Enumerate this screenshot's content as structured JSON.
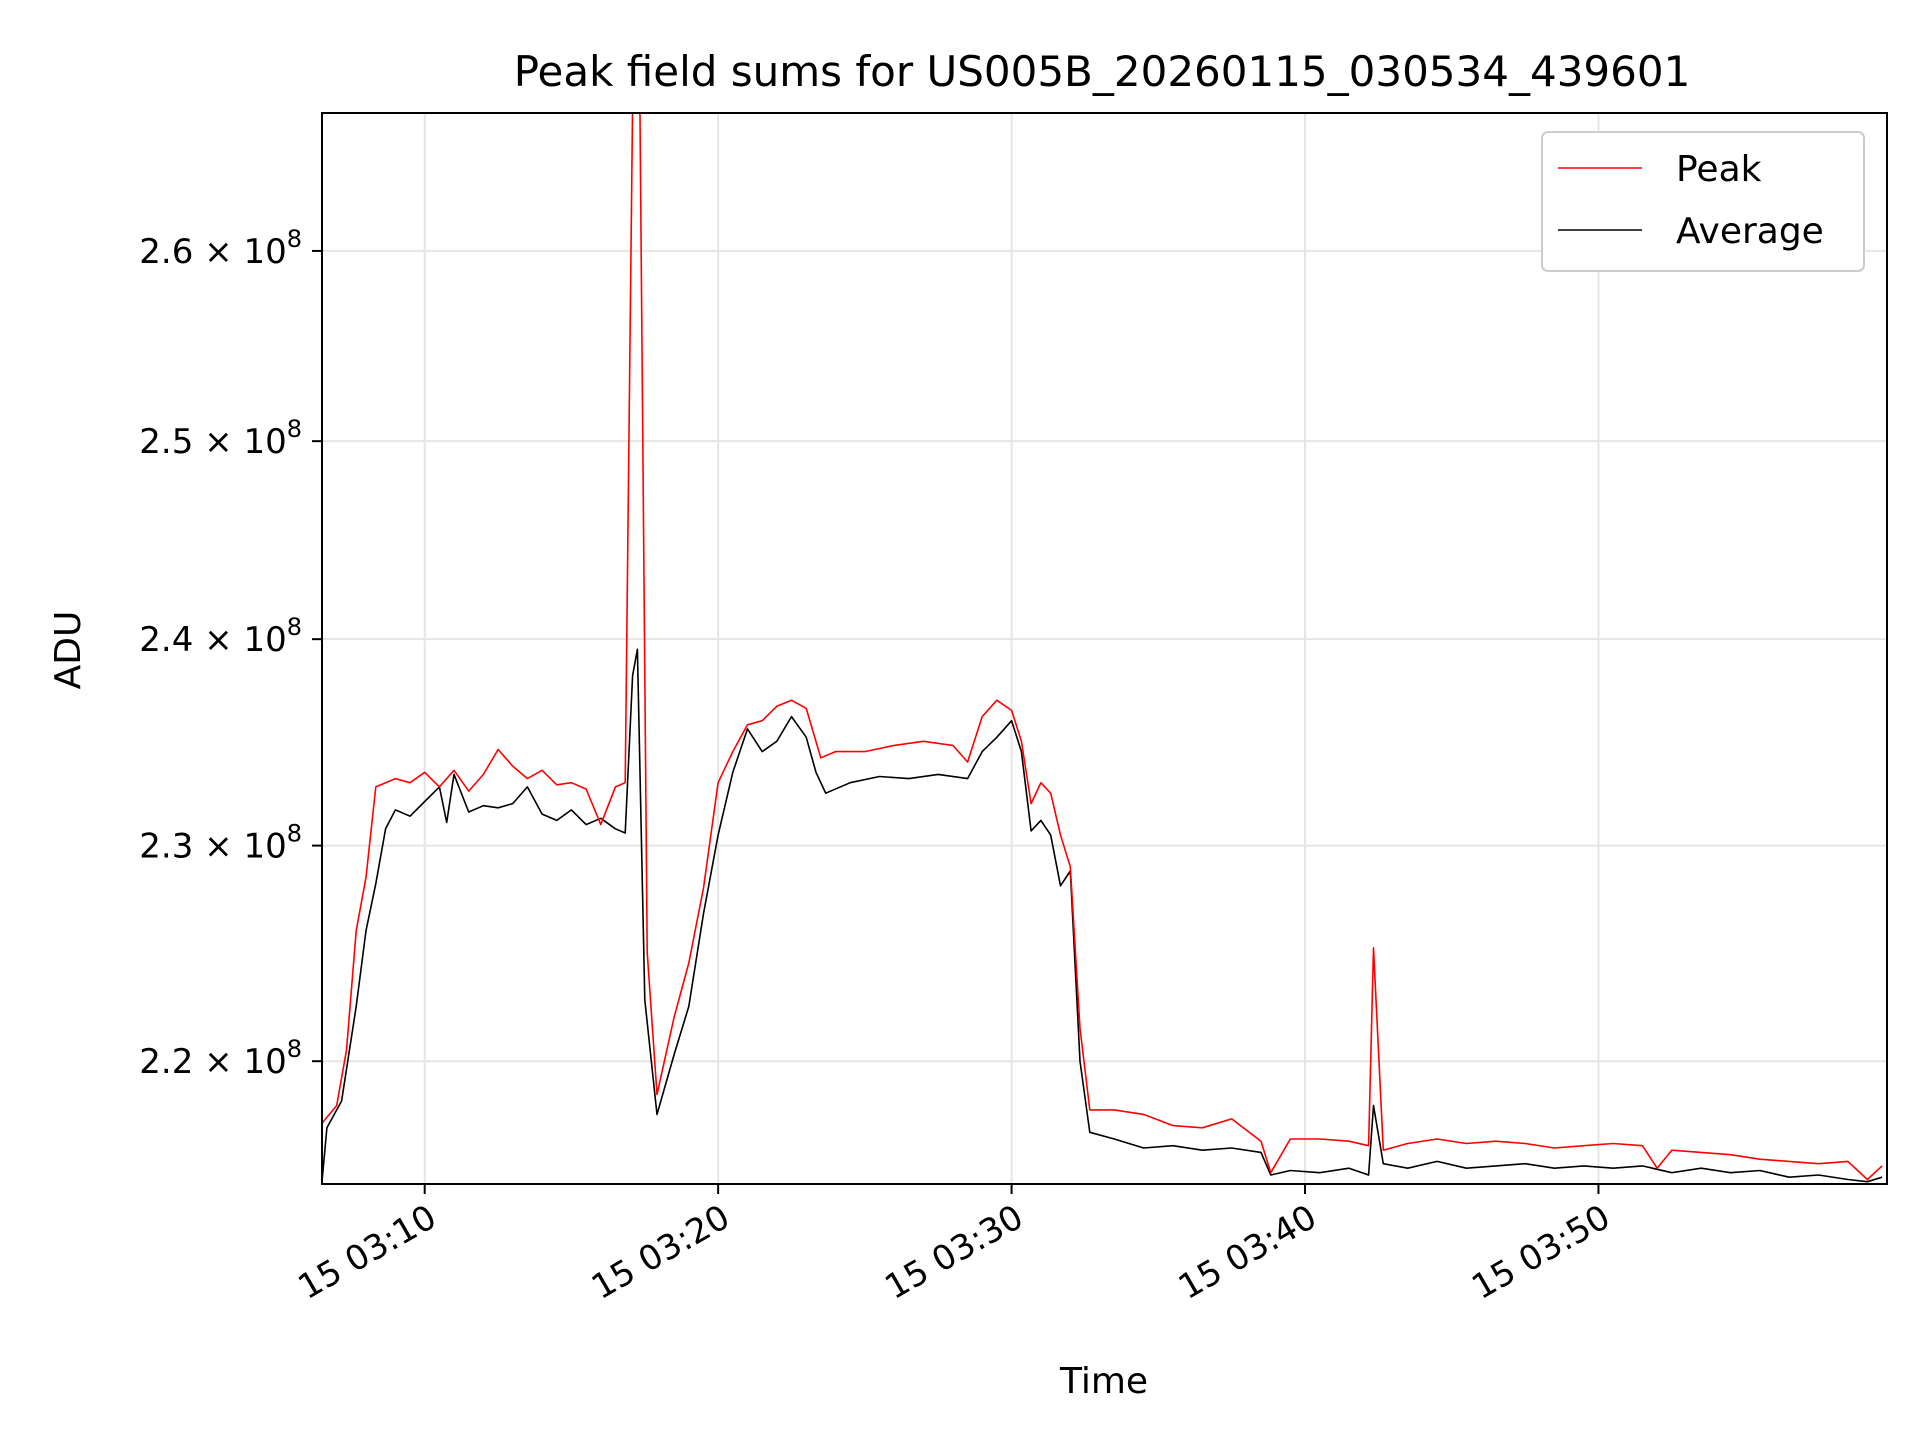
{
  "chart_data": {
    "type": "line",
    "title": "Peak field sums for US005B_20260115_030534_439601",
    "xlabel": "Time",
    "ylabel": "ADU",
    "x_type": "time",
    "x_range": [
      "2026-01-15 03:06:30",
      "2026-01-15 03:59:50"
    ],
    "x_tick_values": [
      "2026-01-15 03:10:00",
      "2026-01-15 03:20:00",
      "2026-01-15 03:30:00",
      "2026-01-15 03:40:00",
      "2026-01-15 03:50:00"
    ],
    "x_tick_labels": [
      "15 03:10",
      "15 03:20",
      "15 03:30",
      "15 03:40",
      "15 03:50"
    ],
    "y_scale": "log",
    "ylim": [
      214500000,
      267500000
    ],
    "y_ticks": [
      {
        "value": 220000000,
        "mantissa": "2.2",
        "exp": "8"
      },
      {
        "value": 230000000,
        "mantissa": "2.3",
        "exp": "8"
      },
      {
        "value": 240000000,
        "mantissa": "2.4",
        "exp": "8"
      },
      {
        "value": 250000000,
        "mantissa": "2.5",
        "exp": "8"
      },
      {
        "value": 260000000,
        "mantissa": "2.6",
        "exp": "8"
      }
    ],
    "grid": true,
    "legend_position": "top-right",
    "series": [
      {
        "name": "Peak",
        "color": "#ff0000",
        "points": [
          [
            "2026-01-15 03:06:30",
            217200000
          ],
          [
            "2026-01-15 03:07:00",
            218000000
          ],
          [
            "2026-01-15 03:07:20",
            220500000
          ],
          [
            "2026-01-15 03:07:40",
            226000000
          ],
          [
            "2026-01-15 03:08:00",
            228500000
          ],
          [
            "2026-01-15 03:08:20",
            232800000
          ],
          [
            "2026-01-15 03:09:00",
            233200000
          ],
          [
            "2026-01-15 03:09:30",
            233000000
          ],
          [
            "2026-01-15 03:10:00",
            233500000
          ],
          [
            "2026-01-15 03:10:30",
            232800000
          ],
          [
            "2026-01-15 03:11:00",
            233600000
          ],
          [
            "2026-01-15 03:11:30",
            232600000
          ],
          [
            "2026-01-15 03:12:00",
            233400000
          ],
          [
            "2026-01-15 03:12:30",
            234600000
          ],
          [
            "2026-01-15 03:13:00",
            233800000
          ],
          [
            "2026-01-15 03:13:30",
            233200000
          ],
          [
            "2026-01-15 03:14:00",
            233600000
          ],
          [
            "2026-01-15 03:14:30",
            232900000
          ],
          [
            "2026-01-15 03:15:00",
            233000000
          ],
          [
            "2026-01-15 03:15:30",
            232700000
          ],
          [
            "2026-01-15 03:16:00",
            231000000
          ],
          [
            "2026-01-15 03:16:30",
            232800000
          ],
          [
            "2026-01-15 03:16:50",
            233000000
          ],
          [
            "2026-01-15 03:17:05",
            268000000
          ],
          [
            "2026-01-15 03:17:20",
            268000000
          ],
          [
            "2026-01-15 03:17:35",
            225000000
          ],
          [
            "2026-01-15 03:17:55",
            218500000
          ],
          [
            "2026-01-15 03:18:30",
            222000000
          ],
          [
            "2026-01-15 03:19:00",
            224500000
          ],
          [
            "2026-01-15 03:19:30",
            228000000
          ],
          [
            "2026-01-15 03:20:00",
            233000000
          ],
          [
            "2026-01-15 03:20:30",
            234500000
          ],
          [
            "2026-01-15 03:21:00",
            235800000
          ],
          [
            "2026-01-15 03:21:30",
            236000000
          ],
          [
            "2026-01-15 03:22:00",
            236700000
          ],
          [
            "2026-01-15 03:22:30",
            237000000
          ],
          [
            "2026-01-15 03:23:00",
            236600000
          ],
          [
            "2026-01-15 03:23:30",
            234200000
          ],
          [
            "2026-01-15 03:24:00",
            234500000
          ],
          [
            "2026-01-15 03:25:00",
            234500000
          ],
          [
            "2026-01-15 03:26:00",
            234800000
          ],
          [
            "2026-01-15 03:27:00",
            235000000
          ],
          [
            "2026-01-15 03:28:00",
            234800000
          ],
          [
            "2026-01-15 03:28:30",
            234000000
          ],
          [
            "2026-01-15 03:29:00",
            236200000
          ],
          [
            "2026-01-15 03:29:30",
            237000000
          ],
          [
            "2026-01-15 03:30:00",
            236500000
          ],
          [
            "2026-01-15 03:30:20",
            235000000
          ],
          [
            "2026-01-15 03:30:40",
            232000000
          ],
          [
            "2026-01-15 03:31:00",
            233000000
          ],
          [
            "2026-01-15 03:31:20",
            232500000
          ],
          [
            "2026-01-15 03:31:40",
            230500000
          ],
          [
            "2026-01-15 03:32:00",
            229000000
          ],
          [
            "2026-01-15 03:32:20",
            221500000
          ],
          [
            "2026-01-15 03:32:40",
            217800000
          ],
          [
            "2026-01-15 03:33:30",
            217800000
          ],
          [
            "2026-01-15 03:34:30",
            217600000
          ],
          [
            "2026-01-15 03:35:30",
            217100000
          ],
          [
            "2026-01-15 03:36:30",
            217000000
          ],
          [
            "2026-01-15 03:37:30",
            217400000
          ],
          [
            "2026-01-15 03:38:30",
            216400000
          ],
          [
            "2026-01-15 03:38:50",
            215000000
          ],
          [
            "2026-01-15 03:39:30",
            216500000
          ],
          [
            "2026-01-15 03:40:30",
            216500000
          ],
          [
            "2026-01-15 03:41:30",
            216400000
          ],
          [
            "2026-01-15 03:42:10",
            216200000
          ],
          [
            "2026-01-15 03:42:20",
            225200000
          ],
          [
            "2026-01-15 03:42:40",
            216000000
          ],
          [
            "2026-01-15 03:43:30",
            216300000
          ],
          [
            "2026-01-15 03:44:30",
            216500000
          ],
          [
            "2026-01-15 03:45:30",
            216300000
          ],
          [
            "2026-01-15 03:46:30",
            216400000
          ],
          [
            "2026-01-15 03:47:30",
            216300000
          ],
          [
            "2026-01-15 03:48:30",
            216100000
          ],
          [
            "2026-01-15 03:49:30",
            216200000
          ],
          [
            "2026-01-15 03:50:30",
            216300000
          ],
          [
            "2026-01-15 03:51:30",
            216200000
          ],
          [
            "2026-01-15 03:52:00",
            215200000
          ],
          [
            "2026-01-15 03:52:30",
            216000000
          ],
          [
            "2026-01-15 03:53:30",
            215900000
          ],
          [
            "2026-01-15 03:54:30",
            215800000
          ],
          [
            "2026-01-15 03:55:30",
            215600000
          ],
          [
            "2026-01-15 03:56:30",
            215500000
          ],
          [
            "2026-01-15 03:57:30",
            215400000
          ],
          [
            "2026-01-15 03:58:30",
            215500000
          ],
          [
            "2026-01-15 03:59:10",
            214700000
          ],
          [
            "2026-01-15 03:59:40",
            215300000
          ]
        ]
      },
      {
        "name": "Average",
        "color": "#000000",
        "points": [
          [
            "2026-01-15 03:06:30",
            214600000
          ],
          [
            "2026-01-15 03:06:40",
            217000000
          ],
          [
            "2026-01-15 03:07:10",
            218200000
          ],
          [
            "2026-01-15 03:07:40",
            222500000
          ],
          [
            "2026-01-15 03:08:00",
            226000000
          ],
          [
            "2026-01-15 03:08:20",
            228200000
          ],
          [
            "2026-01-15 03:08:40",
            230800000
          ],
          [
            "2026-01-15 03:09:00",
            231700000
          ],
          [
            "2026-01-15 03:09:30",
            231400000
          ],
          [
            "2026-01-15 03:10:00",
            232100000
          ],
          [
            "2026-01-15 03:10:30",
            232800000
          ],
          [
            "2026-01-15 03:10:45",
            231100000
          ],
          [
            "2026-01-15 03:11:00",
            233400000
          ],
          [
            "2026-01-15 03:11:30",
            231600000
          ],
          [
            "2026-01-15 03:12:00",
            231900000
          ],
          [
            "2026-01-15 03:12:30",
            231800000
          ],
          [
            "2026-01-15 03:13:00",
            232000000
          ],
          [
            "2026-01-15 03:13:30",
            232800000
          ],
          [
            "2026-01-15 03:14:00",
            231500000
          ],
          [
            "2026-01-15 03:14:30",
            231200000
          ],
          [
            "2026-01-15 03:15:00",
            231700000
          ],
          [
            "2026-01-15 03:15:30",
            231000000
          ],
          [
            "2026-01-15 03:16:00",
            231300000
          ],
          [
            "2026-01-15 03:16:30",
            230800000
          ],
          [
            "2026-01-15 03:16:50",
            230600000
          ],
          [
            "2026-01-15 03:17:05",
            238200000
          ],
          [
            "2026-01-15 03:17:15",
            239500000
          ],
          [
            "2026-01-15 03:17:30",
            222800000
          ],
          [
            "2026-01-15 03:17:55",
            217600000
          ],
          [
            "2026-01-15 03:18:30",
            220300000
          ],
          [
            "2026-01-15 03:19:00",
            222500000
          ],
          [
            "2026-01-15 03:19:30",
            226800000
          ],
          [
            "2026-01-15 03:20:00",
            230500000
          ],
          [
            "2026-01-15 03:20:30",
            233500000
          ],
          [
            "2026-01-15 03:21:00",
            235600000
          ],
          [
            "2026-01-15 03:21:30",
            234500000
          ],
          [
            "2026-01-15 03:22:00",
            235000000
          ],
          [
            "2026-01-15 03:22:30",
            236200000
          ],
          [
            "2026-01-15 03:23:00",
            235200000
          ],
          [
            "2026-01-15 03:23:20",
            233500000
          ],
          [
            "2026-01-15 03:23:40",
            232500000
          ],
          [
            "2026-01-15 03:24:30",
            233000000
          ],
          [
            "2026-01-15 03:25:30",
            233300000
          ],
          [
            "2026-01-15 03:26:30",
            233200000
          ],
          [
            "2026-01-15 03:27:30",
            233400000
          ],
          [
            "2026-01-15 03:28:30",
            233200000
          ],
          [
            "2026-01-15 03:29:00",
            234500000
          ],
          [
            "2026-01-15 03:29:30",
            235200000
          ],
          [
            "2026-01-15 03:30:00",
            236000000
          ],
          [
            "2026-01-15 03:30:20",
            234500000
          ],
          [
            "2026-01-15 03:30:40",
            230700000
          ],
          [
            "2026-01-15 03:31:00",
            231200000
          ],
          [
            "2026-01-15 03:31:20",
            230500000
          ],
          [
            "2026-01-15 03:31:40",
            228100000
          ],
          [
            "2026-01-15 03:32:00",
            228800000
          ],
          [
            "2026-01-15 03:32:20",
            220000000
          ],
          [
            "2026-01-15 03:32:40",
            216800000
          ],
          [
            "2026-01-15 03:33:30",
            216500000
          ],
          [
            "2026-01-15 03:34:30",
            216100000
          ],
          [
            "2026-01-15 03:35:30",
            216200000
          ],
          [
            "2026-01-15 03:36:30",
            216000000
          ],
          [
            "2026-01-15 03:37:30",
            216100000
          ],
          [
            "2026-01-15 03:38:30",
            215900000
          ],
          [
            "2026-01-15 03:38:50",
            214900000
          ],
          [
            "2026-01-15 03:39:30",
            215100000
          ],
          [
            "2026-01-15 03:40:30",
            215000000
          ],
          [
            "2026-01-15 03:41:30",
            215200000
          ],
          [
            "2026-01-15 03:42:10",
            214900000
          ],
          [
            "2026-01-15 03:42:20",
            218000000
          ],
          [
            "2026-01-15 03:42:40",
            215400000
          ],
          [
            "2026-01-15 03:43:30",
            215200000
          ],
          [
            "2026-01-15 03:44:30",
            215500000
          ],
          [
            "2026-01-15 03:45:30",
            215200000
          ],
          [
            "2026-01-15 03:46:30",
            215300000
          ],
          [
            "2026-01-15 03:47:30",
            215400000
          ],
          [
            "2026-01-15 03:48:30",
            215200000
          ],
          [
            "2026-01-15 03:49:30",
            215300000
          ],
          [
            "2026-01-15 03:50:30",
            215200000
          ],
          [
            "2026-01-15 03:51:30",
            215300000
          ],
          [
            "2026-01-15 03:52:30",
            215000000
          ],
          [
            "2026-01-15 03:53:30",
            215200000
          ],
          [
            "2026-01-15 03:54:30",
            215000000
          ],
          [
            "2026-01-15 03:55:30",
            215100000
          ],
          [
            "2026-01-15 03:56:30",
            214800000
          ],
          [
            "2026-01-15 03:57:30",
            214900000
          ],
          [
            "2026-01-15 03:58:30",
            214700000
          ],
          [
            "2026-01-15 03:59:10",
            214600000
          ],
          [
            "2026-01-15 03:59:40",
            214800000
          ]
        ]
      }
    ]
  }
}
